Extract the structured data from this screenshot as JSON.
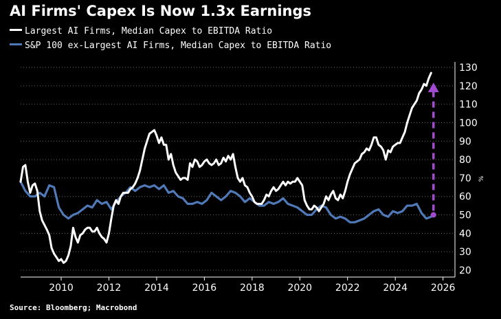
{
  "chart_data": {
    "type": "line",
    "title": "AI Firms' Capex Is Now 1.3x Earnings",
    "source": "Source: Bloomberg; Macrobond",
    "y_unit": "%",
    "ylim": [
      20,
      130
    ],
    "xlim": [
      2008.3,
      2026.5
    ],
    "yticks": [
      "20",
      "30",
      "40",
      "50",
      "60",
      "70",
      "80",
      "90",
      "100",
      "110",
      "120",
      "130"
    ],
    "xticks": [
      "2010",
      "2012",
      "2014",
      "2016",
      "2018",
      "2020",
      "2022",
      "2024",
      "2026"
    ],
    "grid": "horizontal dotted",
    "legend_position": "top-left",
    "arrow": {
      "x": 2025.6,
      "from": 50,
      "to": 121,
      "color": "#a34bd0"
    },
    "series": [
      {
        "name": "Largest AI Firms, Median Capex to EBITDA Ratio",
        "color": "#ffffff",
        "points": [
          [
            2008.3,
            68
          ],
          [
            2008.4,
            76
          ],
          [
            2008.5,
            77
          ],
          [
            2008.6,
            68
          ],
          [
            2008.7,
            62
          ],
          [
            2008.8,
            66
          ],
          [
            2008.9,
            67
          ],
          [
            2009.0,
            63
          ],
          [
            2009.1,
            52
          ],
          [
            2009.2,
            47
          ],
          [
            2009.4,
            42
          ],
          [
            2009.5,
            39
          ],
          [
            2009.6,
            32
          ],
          [
            2009.7,
            29
          ],
          [
            2009.8,
            27
          ],
          [
            2009.9,
            25
          ],
          [
            2010.0,
            26
          ],
          [
            2010.1,
            24
          ],
          [
            2010.2,
            25
          ],
          [
            2010.3,
            28
          ],
          [
            2010.4,
            33
          ],
          [
            2010.5,
            43
          ],
          [
            2010.6,
            38
          ],
          [
            2010.7,
            35
          ],
          [
            2010.8,
            39
          ],
          [
            2010.9,
            40
          ],
          [
            2011.0,
            42
          ],
          [
            2011.1,
            43
          ],
          [
            2011.2,
            43
          ],
          [
            2011.3,
            41
          ],
          [
            2011.4,
            41
          ],
          [
            2011.5,
            43
          ],
          [
            2011.6,
            40
          ],
          [
            2011.7,
            38
          ],
          [
            2011.8,
            37
          ],
          [
            2011.9,
            35
          ],
          [
            2012.0,
            40
          ],
          [
            2012.1,
            48
          ],
          [
            2012.2,
            55
          ],
          [
            2012.3,
            58
          ],
          [
            2012.4,
            56
          ],
          [
            2012.5,
            60
          ],
          [
            2012.6,
            62
          ],
          [
            2012.7,
            62
          ],
          [
            2012.8,
            62
          ],
          [
            2012.9,
            64
          ],
          [
            2013.0,
            65
          ],
          [
            2013.1,
            67
          ],
          [
            2013.2,
            70
          ],
          [
            2013.3,
            74
          ],
          [
            2013.4,
            80
          ],
          [
            2013.5,
            86
          ],
          [
            2013.6,
            90
          ],
          [
            2013.7,
            94
          ],
          [
            2013.8,
            95
          ],
          [
            2013.9,
            96
          ],
          [
            2014.0,
            93
          ],
          [
            2014.1,
            89
          ],
          [
            2014.2,
            92
          ],
          [
            2014.3,
            88
          ],
          [
            2014.4,
            88
          ],
          [
            2014.5,
            80
          ],
          [
            2014.6,
            83
          ],
          [
            2014.7,
            77
          ],
          [
            2014.8,
            73
          ],
          [
            2014.9,
            71
          ],
          [
            2015.0,
            69
          ],
          [
            2015.1,
            70
          ],
          [
            2015.2,
            70
          ],
          [
            2015.3,
            69
          ],
          [
            2015.4,
            78
          ],
          [
            2015.5,
            76
          ],
          [
            2015.6,
            80
          ],
          [
            2015.7,
            79
          ],
          [
            2015.8,
            76
          ],
          [
            2015.9,
            77
          ],
          [
            2016.0,
            79
          ],
          [
            2016.1,
            80
          ],
          [
            2016.2,
            78
          ],
          [
            2016.3,
            77
          ],
          [
            2016.4,
            78
          ],
          [
            2016.5,
            80
          ],
          [
            2016.6,
            77
          ],
          [
            2016.7,
            78
          ],
          [
            2016.8,
            81
          ],
          [
            2016.9,
            79
          ],
          [
            2017.0,
            82
          ],
          [
            2017.1,
            80
          ],
          [
            2017.2,
            83
          ],
          [
            2017.3,
            76
          ],
          [
            2017.4,
            70
          ],
          [
            2017.5,
            68
          ],
          [
            2017.6,
            70
          ],
          [
            2017.7,
            66
          ],
          [
            2017.8,
            65
          ],
          [
            2017.9,
            62
          ],
          [
            2018.0,
            60
          ],
          [
            2018.1,
            57
          ],
          [
            2018.2,
            56
          ],
          [
            2018.4,
            56
          ],
          [
            2018.5,
            58
          ],
          [
            2018.6,
            61
          ],
          [
            2018.7,
            60
          ],
          [
            2018.8,
            63
          ],
          [
            2018.9,
            65
          ],
          [
            2019.0,
            63
          ],
          [
            2019.1,
            64
          ],
          [
            2019.2,
            66
          ],
          [
            2019.3,
            68
          ],
          [
            2019.4,
            66
          ],
          [
            2019.5,
            68
          ],
          [
            2019.6,
            67
          ],
          [
            2019.7,
            68
          ],
          [
            2019.8,
            68
          ],
          [
            2019.9,
            70
          ],
          [
            2020.0,
            68
          ],
          [
            2020.1,
            66
          ],
          [
            2020.2,
            58
          ],
          [
            2020.3,
            55
          ],
          [
            2020.4,
            53
          ],
          [
            2020.5,
            53
          ],
          [
            2020.6,
            55
          ],
          [
            2020.7,
            54
          ],
          [
            2020.8,
            52
          ],
          [
            2020.9,
            54
          ],
          [
            2021.0,
            56
          ],
          [
            2021.1,
            60
          ],
          [
            2021.2,
            58
          ],
          [
            2021.3,
            61
          ],
          [
            2021.4,
            63
          ],
          [
            2021.5,
            59
          ],
          [
            2021.6,
            58
          ],
          [
            2021.7,
            61
          ],
          [
            2021.8,
            59
          ],
          [
            2021.9,
            63
          ],
          [
            2022.0,
            68
          ],
          [
            2022.1,
            72
          ],
          [
            2022.2,
            75
          ],
          [
            2022.3,
            78
          ],
          [
            2022.5,
            80
          ],
          [
            2022.6,
            83
          ],
          [
            2022.7,
            84
          ],
          [
            2022.8,
            86
          ],
          [
            2022.9,
            85
          ],
          [
            2023.0,
            88
          ],
          [
            2023.1,
            92
          ],
          [
            2023.2,
            92
          ],
          [
            2023.3,
            88
          ],
          [
            2023.4,
            87
          ],
          [
            2023.5,
            85
          ],
          [
            2023.6,
            80
          ],
          [
            2023.7,
            85
          ],
          [
            2023.8,
            84
          ],
          [
            2023.9,
            87
          ],
          [
            2024.0,
            88
          ],
          [
            2024.1,
            89
          ],
          [
            2024.2,
            89
          ],
          [
            2024.3,
            92
          ],
          [
            2024.4,
            95
          ],
          [
            2024.5,
            100
          ],
          [
            2024.6,
            104
          ],
          [
            2024.7,
            108
          ],
          [
            2024.8,
            110
          ],
          [
            2024.9,
            112
          ],
          [
            2025.0,
            116
          ],
          [
            2025.1,
            118
          ],
          [
            2025.2,
            121
          ],
          [
            2025.3,
            120
          ],
          [
            2025.4,
            124
          ],
          [
            2025.5,
            127
          ]
        ]
      },
      {
        "name": "S&P 100 ex-Largest AI Firms, Median Capex to EBITDA Ratio",
        "color": "#4f79b7",
        "points": [
          [
            2008.3,
            68
          ],
          [
            2008.5,
            63
          ],
          [
            2008.7,
            60
          ],
          [
            2008.9,
            60
          ],
          [
            2009.1,
            62
          ],
          [
            2009.3,
            60
          ],
          [
            2009.5,
            66
          ],
          [
            2009.7,
            65
          ],
          [
            2009.9,
            54
          ],
          [
            2010.1,
            50
          ],
          [
            2010.3,
            48
          ],
          [
            2010.5,
            50
          ],
          [
            2010.7,
            51
          ],
          [
            2010.9,
            53
          ],
          [
            2011.1,
            55
          ],
          [
            2011.3,
            54
          ],
          [
            2011.5,
            58
          ],
          [
            2011.7,
            56
          ],
          [
            2011.9,
            57
          ],
          [
            2012.1,
            53
          ],
          [
            2012.3,
            57
          ],
          [
            2012.5,
            60
          ],
          [
            2012.7,
            62
          ],
          [
            2012.9,
            65
          ],
          [
            2013.1,
            63
          ],
          [
            2013.3,
            65
          ],
          [
            2013.5,
            66
          ],
          [
            2013.7,
            65
          ],
          [
            2013.9,
            66
          ],
          [
            2014.1,
            64
          ],
          [
            2014.3,
            66
          ],
          [
            2014.5,
            62
          ],
          [
            2014.7,
            63
          ],
          [
            2014.9,
            60
          ],
          [
            2015.1,
            59
          ],
          [
            2015.3,
            56
          ],
          [
            2015.5,
            56
          ],
          [
            2015.7,
            57
          ],
          [
            2015.9,
            56
          ],
          [
            2016.1,
            58
          ],
          [
            2016.3,
            62
          ],
          [
            2016.5,
            60
          ],
          [
            2016.7,
            58
          ],
          [
            2016.9,
            60
          ],
          [
            2017.1,
            63
          ],
          [
            2017.3,
            62
          ],
          [
            2017.5,
            60
          ],
          [
            2017.7,
            57
          ],
          [
            2017.9,
            59
          ],
          [
            2018.1,
            57
          ],
          [
            2018.3,
            55
          ],
          [
            2018.5,
            55
          ],
          [
            2018.7,
            57
          ],
          [
            2018.9,
            56
          ],
          [
            2019.1,
            57
          ],
          [
            2019.3,
            59
          ],
          [
            2019.5,
            56
          ],
          [
            2019.7,
            55
          ],
          [
            2019.9,
            54
          ],
          [
            2020.1,
            52
          ],
          [
            2020.3,
            50
          ],
          [
            2020.5,
            50
          ],
          [
            2020.7,
            53
          ],
          [
            2020.9,
            55
          ],
          [
            2021.1,
            54
          ],
          [
            2021.3,
            50
          ],
          [
            2021.5,
            48
          ],
          [
            2021.7,
            49
          ],
          [
            2021.9,
            48
          ],
          [
            2022.1,
            46
          ],
          [
            2022.3,
            46
          ],
          [
            2022.5,
            47
          ],
          [
            2022.7,
            48
          ],
          [
            2022.9,
            50
          ],
          [
            2023.1,
            52
          ],
          [
            2023.3,
            53
          ],
          [
            2023.5,
            50
          ],
          [
            2023.7,
            49
          ],
          [
            2023.9,
            52
          ],
          [
            2024.1,
            51
          ],
          [
            2024.3,
            52
          ],
          [
            2024.5,
            55
          ],
          [
            2024.7,
            55
          ],
          [
            2024.9,
            56
          ],
          [
            2025.1,
            51
          ],
          [
            2025.3,
            48
          ],
          [
            2025.5,
            49
          ]
        ]
      }
    ]
  }
}
